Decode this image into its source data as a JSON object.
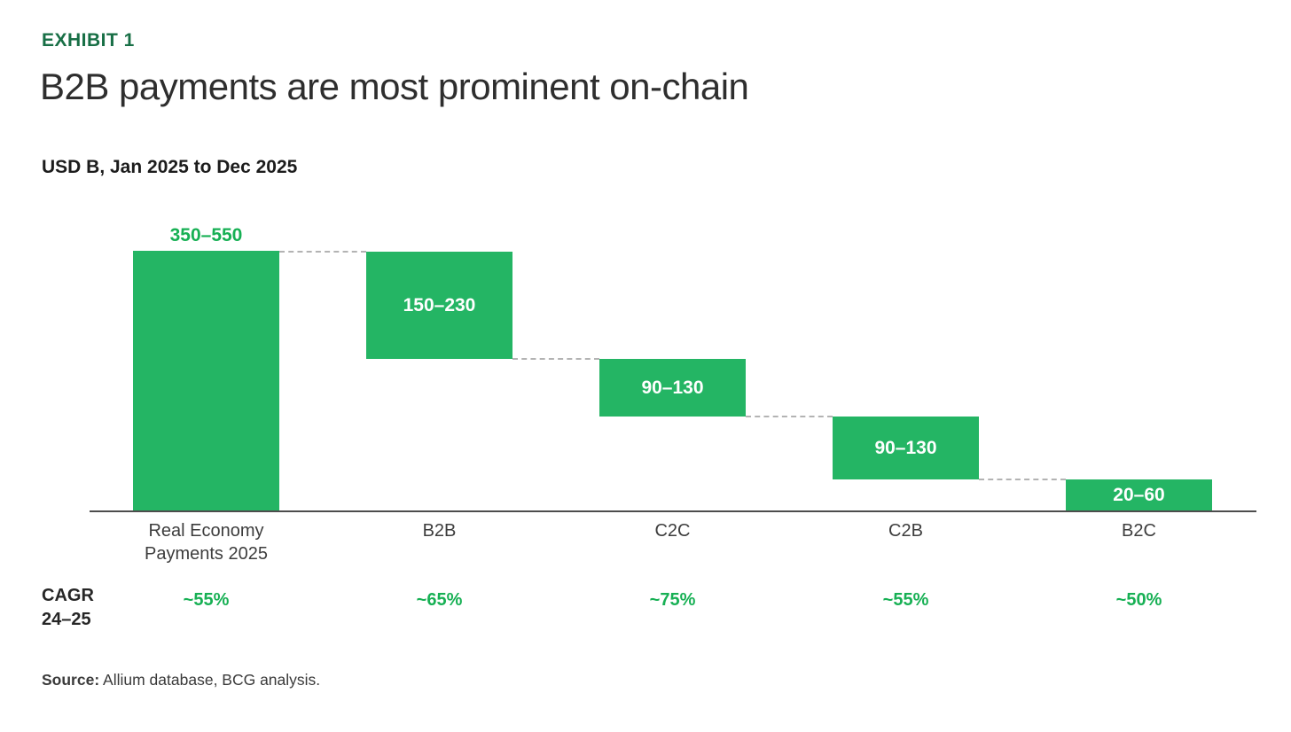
{
  "header": {
    "exhibit_label": "EXHIBIT 1",
    "title": "B2B payments are most prominent on-chain",
    "subtitle": "USD B, Jan 2025 to Dec 2025"
  },
  "cagr": {
    "label_line1": "CAGR",
    "label_line2": "24–25"
  },
  "footer": {
    "source_label": "Source:",
    "source_text": " Allium database, BCG analysis."
  },
  "colors": {
    "bar_green": "#24b564",
    "text_green": "#17b054",
    "exhibit_green": "#186f46",
    "axis_gray": "#4d4d4d",
    "connector_gray": "#b3b3b3",
    "label_gray": "#3d3d3d"
  },
  "chart_data": {
    "type": "bar",
    "subtype": "waterfall",
    "title": "B2B payments are most prominent on-chain",
    "units": "USD B, Jan 2025 to Dec 2025",
    "grid": false,
    "legend": false,
    "categories": [
      "Real Economy Payments 2025",
      "B2B",
      "C2C",
      "C2B",
      "B2C"
    ],
    "segments": [
      {
        "category": "Real Economy Payments 2025",
        "range_label": "350–550",
        "low": 350,
        "high": 550,
        "label_position": "above",
        "cagr": "~55%"
      },
      {
        "category": "B2B",
        "range_label": "150–230",
        "low": 150,
        "high": 230,
        "label_position": "inside",
        "cagr": "~65%"
      },
      {
        "category": "C2C",
        "range_label": "90–130",
        "low": 90,
        "high": 130,
        "label_position": "inside",
        "cagr": "~75%"
      },
      {
        "category": "C2B",
        "range_label": "90–130",
        "low": 90,
        "high": 130,
        "label_position": "inside",
        "cagr": "~55%"
      },
      {
        "category": "B2C",
        "range_label": "20–60",
        "low": 20,
        "high": 60,
        "label_position": "inside",
        "cagr": "~50%"
      }
    ],
    "cagr_row_label": "CAGR 24–25"
  }
}
